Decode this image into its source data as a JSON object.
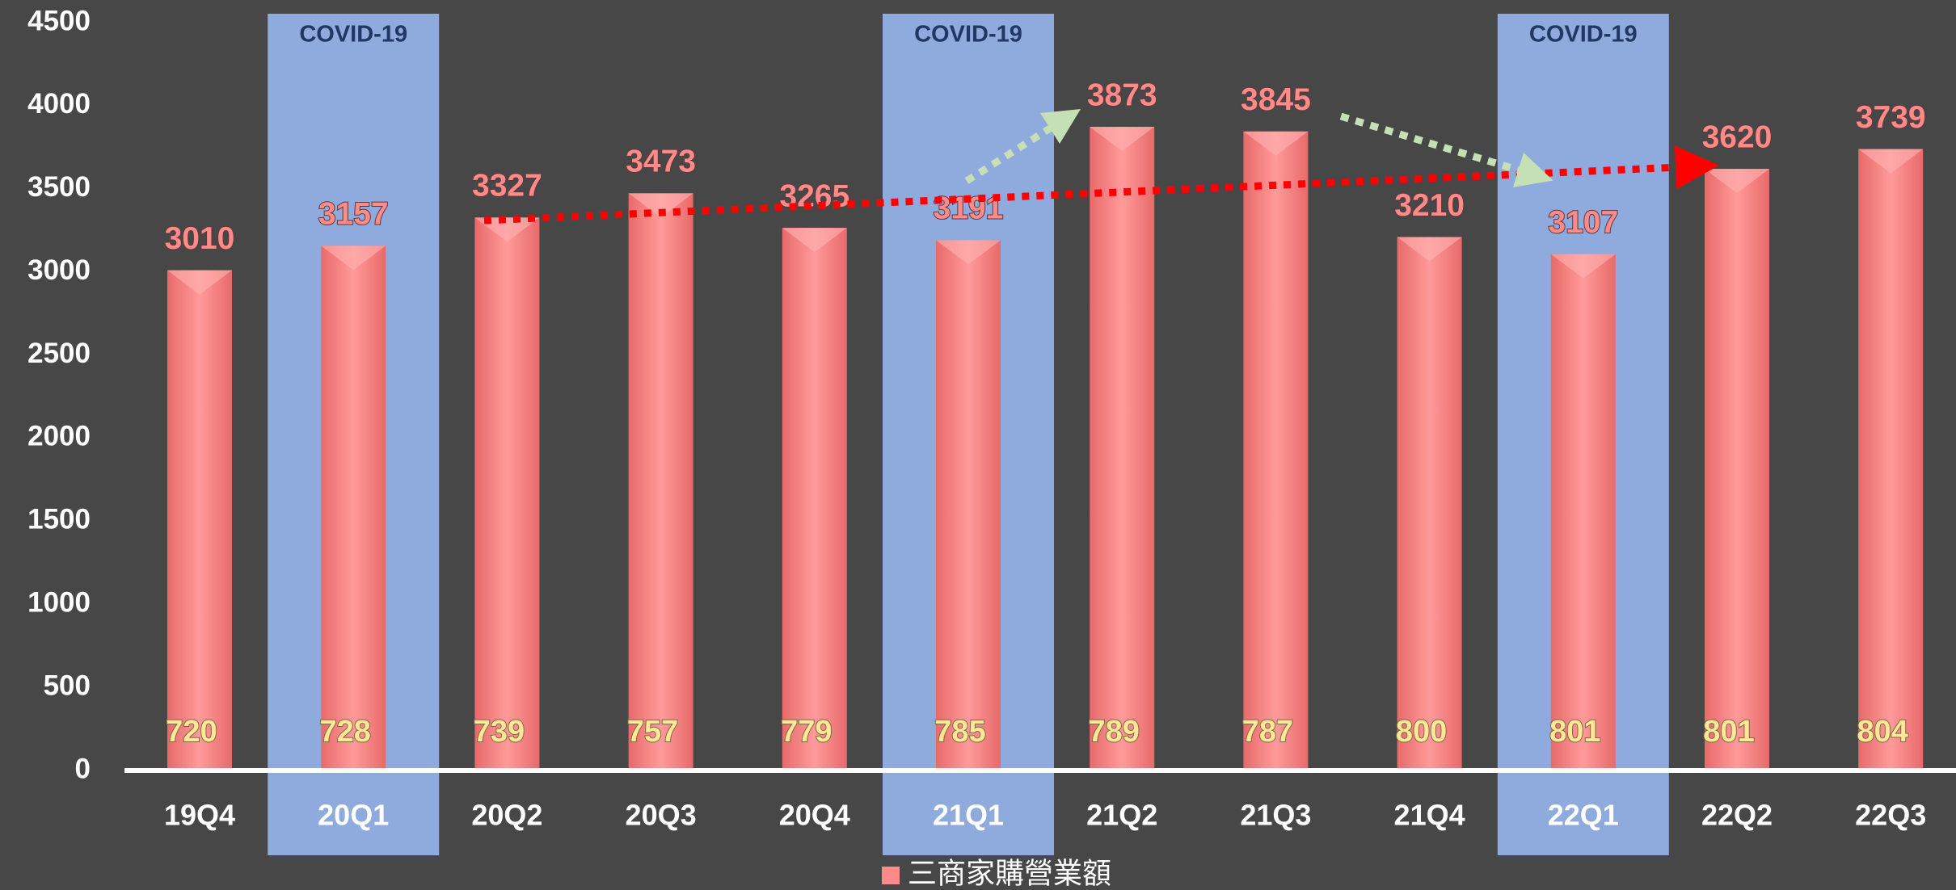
{
  "chart_data": {
    "type": "bar",
    "categories": [
      "19Q4",
      "20Q1",
      "20Q2",
      "20Q3",
      "20Q4",
      "21Q1",
      "21Q2",
      "21Q3",
      "21Q4",
      "22Q1",
      "22Q2",
      "22Q3"
    ],
    "series": [
      {
        "name": "三商家購營業額",
        "color": "#ff8a8a",
        "values": [
          3010,
          3157,
          3327,
          3473,
          3265,
          3191,
          3873,
          3845,
          3210,
          3107,
          3620,
          3739
        ]
      }
    ],
    "inner_labels": [
      720,
      728,
      739,
      757,
      779,
      785,
      789,
      787,
      800,
      801,
      801,
      804
    ],
    "highlights": [
      {
        "category": "20Q1",
        "label": "COVID-19"
      },
      {
        "category": "21Q1",
        "label": "COVID-19"
      },
      {
        "category": "22Q1",
        "label": "COVID-19"
      }
    ],
    "highlight_color": "#8faadc",
    "ylim": [
      0,
      4500
    ],
    "yticks": [
      0,
      500,
      1000,
      1500,
      2000,
      2500,
      3000,
      3500,
      4000,
      4500
    ],
    "legend": "bottom"
  }
}
